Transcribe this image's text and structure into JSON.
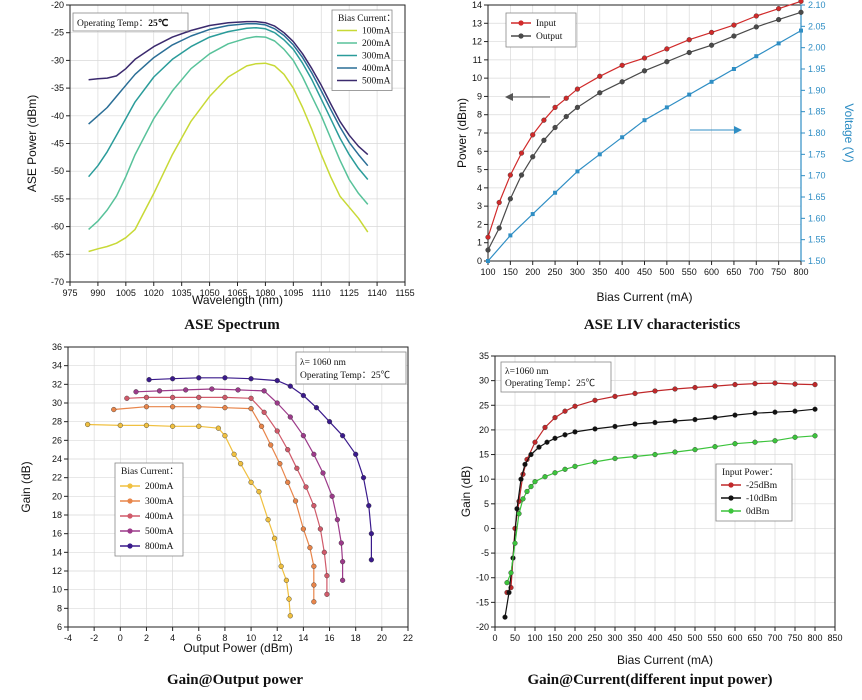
{
  "chart_data": [
    {
      "type": "line",
      "caption": "ASE Spectrum",
      "xlabel": "Wavelength (nm)",
      "ylabel": "ASE Power (dBm)",
      "xlim": [
        975,
        1155
      ],
      "ylim": [
        -70,
        -20
      ],
      "xticks": [
        975,
        990,
        1005,
        1020,
        1035,
        1050,
        1065,
        1080,
        1095,
        1110,
        1125,
        1140,
        1155
      ],
      "yticks": [
        -70,
        -65,
        -60,
        -55,
        -50,
        -45,
        -40,
        -35,
        -30,
        -25,
        -20
      ],
      "grid": true,
      "annotation": {
        "prefix": "Operating Temp：",
        "value": "25℃"
      },
      "legend": {
        "title": "Bias Current：",
        "position": "top-right"
      },
      "series": [
        {
          "name": "100mA",
          "color": "#c8d936",
          "x": [
            985,
            990,
            995,
            1000,
            1005,
            1010,
            1020,
            1030,
            1040,
            1050,
            1060,
            1070,
            1075,
            1080,
            1085,
            1090,
            1095,
            1100,
            1105,
            1110,
            1115,
            1120,
            1125,
            1130,
            1135
          ],
          "y": [
            -64.5,
            -64,
            -63.6,
            -63,
            -62,
            -60.5,
            -54,
            -47,
            -41,
            -36.5,
            -33,
            -31,
            -30.6,
            -30.5,
            -31,
            -32.5,
            -35,
            -38.5,
            -42.5,
            -47,
            -51,
            -54.5,
            -56.5,
            -58.5,
            -61
          ]
        },
        {
          "name": "200mA",
          "color": "#58c29a",
          "x": [
            985,
            990,
            995,
            1000,
            1005,
            1010,
            1020,
            1030,
            1040,
            1050,
            1060,
            1070,
            1075,
            1080,
            1085,
            1090,
            1095,
            1100,
            1105,
            1110,
            1115,
            1120,
            1125,
            1130,
            1135
          ],
          "y": [
            -60.5,
            -59,
            -57,
            -54.5,
            -51,
            -47,
            -40.5,
            -35.5,
            -31.5,
            -28.8,
            -27,
            -26,
            -25.7,
            -25.8,
            -26.5,
            -28,
            -30,
            -33,
            -36.5,
            -40,
            -44,
            -48,
            -51.5,
            -54,
            -56
          ]
        },
        {
          "name": "300mA",
          "color": "#2a9c9a",
          "x": [
            985,
            990,
            995,
            1000,
            1005,
            1010,
            1020,
            1030,
            1040,
            1050,
            1060,
            1070,
            1075,
            1080,
            1085,
            1090,
            1095,
            1100,
            1105,
            1110,
            1115,
            1120,
            1125,
            1130,
            1135
          ],
          "y": [
            -51,
            -49,
            -46.5,
            -43.5,
            -40.5,
            -37.5,
            -33,
            -29.8,
            -27.5,
            -25.8,
            -24.8,
            -24.2,
            -24.1,
            -24.3,
            -25,
            -26.3,
            -28,
            -30.5,
            -33.5,
            -37,
            -40.5,
            -44,
            -47,
            -49.5,
            -51.5
          ]
        },
        {
          "name": "400mA",
          "color": "#2a6e96",
          "x": [
            985,
            990,
            995,
            1000,
            1005,
            1010,
            1020,
            1030,
            1040,
            1050,
            1060,
            1070,
            1075,
            1080,
            1085,
            1090,
            1095,
            1100,
            1105,
            1110,
            1115,
            1120,
            1125,
            1130,
            1135
          ],
          "y": [
            -41.5,
            -40,
            -38.5,
            -36.5,
            -34.5,
            -32.5,
            -29.5,
            -27.2,
            -25.6,
            -24.4,
            -23.7,
            -23.4,
            -23.4,
            -23.6,
            -24.3,
            -25.5,
            -27.2,
            -29.5,
            -32.3,
            -35.5,
            -38.8,
            -42,
            -44.8,
            -47,
            -49
          ]
        },
        {
          "name": "500mA",
          "color": "#3b2a6e",
          "x": [
            985,
            990,
            995,
            1000,
            1005,
            1010,
            1020,
            1030,
            1040,
            1050,
            1060,
            1070,
            1075,
            1080,
            1085,
            1090,
            1095,
            1100,
            1105,
            1110,
            1115,
            1120,
            1125,
            1130,
            1135
          ],
          "y": [
            -33.5,
            -33.3,
            -33.2,
            -32.8,
            -31.5,
            -29.8,
            -27.5,
            -25.8,
            -24.6,
            -23.7,
            -23.2,
            -23,
            -23,
            -23.2,
            -23.8,
            -25,
            -26.6,
            -28.8,
            -31.5,
            -34.5,
            -37.8,
            -41,
            -43.5,
            -45.5,
            -47
          ]
        }
      ]
    },
    {
      "type": "line",
      "caption": "ASE LIV characteristics",
      "xlabel": "Bias Current (mA)",
      "ylabel": "Power (dBm)",
      "y2label": "Voltage (V)",
      "xlim": [
        100,
        800
      ],
      "ylim": [
        0,
        14
      ],
      "y2lim": [
        1.5,
        2.1
      ],
      "xticks": [
        100,
        150,
        200,
        250,
        300,
        350,
        400,
        450,
        500,
        550,
        600,
        650,
        700,
        750,
        800
      ],
      "yticks": [
        0,
        1,
        2,
        3,
        4,
        5,
        6,
        7,
        8,
        9,
        10,
        11,
        12,
        13,
        14
      ],
      "y2ticks": [
        1.5,
        1.55,
        1.6,
        1.65,
        1.7,
        1.75,
        1.8,
        1.85,
        1.9,
        1.95,
        2.0,
        2.05,
        2.1
      ],
      "y2tick_labels": [
        "1.50",
        "1.55",
        "1.60",
        "1.65",
        "1.70",
        "1.75",
        "1.80",
        "1.85",
        "1.90",
        "1.95",
        "2.00",
        "2.05",
        "2.10"
      ],
      "legend": {
        "position": "top-left"
      },
      "series": [
        {
          "name": "Input",
          "color": "#d12a2a",
          "axis": "left",
          "x": [
            100,
            125,
            150,
            175,
            200,
            225,
            250,
            275,
            300,
            350,
            400,
            450,
            500,
            550,
            600,
            650,
            700,
            750,
            800
          ],
          "y": [
            1.3,
            3.2,
            4.7,
            5.9,
            6.9,
            7.7,
            8.4,
            8.9,
            9.4,
            10.1,
            10.7,
            11.1,
            11.6,
            12.1,
            12.5,
            12.9,
            13.4,
            13.8,
            14.2
          ]
        },
        {
          "name": "Output",
          "color": "#4a4a4a",
          "axis": "left",
          "x": [
            100,
            125,
            150,
            175,
            200,
            225,
            250,
            275,
            300,
            350,
            400,
            450,
            500,
            550,
            600,
            650,
            700,
            750,
            800
          ],
          "y": [
            0.6,
            1.8,
            3.4,
            4.7,
            5.7,
            6.6,
            7.3,
            7.9,
            8.4,
            9.2,
            9.8,
            10.4,
            10.9,
            11.4,
            11.8,
            12.3,
            12.8,
            13.2,
            13.6
          ]
        },
        {
          "name": "",
          "color": "#2f8ec4",
          "axis": "right",
          "x": [
            100,
            150,
            200,
            250,
            300,
            350,
            400,
            450,
            500,
            550,
            600,
            650,
            700,
            750,
            800
          ],
          "y": [
            1.5,
            1.56,
            1.61,
            1.66,
            1.71,
            1.75,
            1.79,
            1.83,
            1.86,
            1.89,
            1.92,
            1.95,
            1.98,
            2.01,
            2.04
          ]
        }
      ]
    },
    {
      "type": "line",
      "caption": "Gain@Output power",
      "xlabel": "Output Power (dBm)",
      "ylabel": "Gain (dB)",
      "xlim": [
        -4,
        22
      ],
      "ylim": [
        6,
        36
      ],
      "xticks": [
        -4,
        -2,
        0,
        2,
        4,
        6,
        8,
        10,
        12,
        14,
        16,
        18,
        20,
        22
      ],
      "yticks": [
        6,
        8,
        10,
        12,
        14,
        16,
        18,
        20,
        22,
        24,
        26,
        28,
        30,
        32,
        34,
        36
      ],
      "annotation": {
        "lambda": "λ= 1060 nm",
        "temp": "Operating Temp：25℃"
      },
      "legend": {
        "title": "Bias Current：",
        "position": "bottom-left"
      },
      "series": [
        {
          "name": "200mA",
          "color": "#f0c040",
          "x": [
            -2.5,
            0,
            2,
            4,
            6,
            7.5,
            8,
            8.7,
            9.2,
            10,
            10.6,
            11.3,
            11.8,
            12.3,
            12.7,
            12.9,
            13
          ],
          "y": [
            27.7,
            27.6,
            27.6,
            27.5,
            27.5,
            27.3,
            26.5,
            24.5,
            23.5,
            21.5,
            20.5,
            17.5,
            15.5,
            12.5,
            11,
            9,
            7.2
          ]
        },
        {
          "name": "300mA",
          "color": "#e8854a",
          "x": [
            -0.5,
            2,
            4,
            6,
            8,
            10,
            10.8,
            11.5,
            12.2,
            12.8,
            13.4,
            14,
            14.5,
            14.8,
            14.8,
            14.8
          ],
          "y": [
            29.3,
            29.6,
            29.6,
            29.6,
            29.5,
            29.4,
            27.5,
            25.5,
            23.5,
            21.5,
            19.5,
            16.5,
            14.5,
            12.5,
            10.5,
            8.7
          ]
        },
        {
          "name": "400mA",
          "color": "#d05a6a",
          "x": [
            0.5,
            2,
            4,
            6,
            8,
            10,
            11,
            12,
            12.8,
            13.5,
            14.2,
            14.8,
            15.3,
            15.6,
            15.8,
            15.8
          ],
          "y": [
            30.5,
            30.6,
            30.6,
            30.6,
            30.6,
            30.5,
            29,
            27,
            25,
            23,
            21,
            19,
            16.5,
            14,
            11.5,
            9.5
          ]
        },
        {
          "name": "500mA",
          "color": "#9c3a8a",
          "x": [
            1.2,
            3,
            5,
            7,
            9,
            11,
            12,
            13,
            14,
            14.8,
            15.5,
            16.2,
            16.6,
            16.9,
            17,
            17
          ],
          "y": [
            31.2,
            31.3,
            31.4,
            31.5,
            31.4,
            31.3,
            30,
            28.5,
            26.5,
            24.5,
            22.5,
            20,
            17.5,
            15,
            13,
            11
          ]
        },
        {
          "name": "800mA",
          "color": "#3a1a8c",
          "x": [
            2.2,
            4,
            6,
            8,
            10,
            12,
            13,
            14,
            15,
            16,
            17,
            18,
            18.6,
            19,
            19.2,
            19.2
          ],
          "y": [
            32.5,
            32.6,
            32.7,
            32.7,
            32.6,
            32.4,
            31.8,
            30.8,
            29.5,
            28,
            26.5,
            24.5,
            22,
            19,
            16,
            13.2
          ]
        }
      ]
    },
    {
      "type": "line",
      "caption": "Gain@Current(different input power)",
      "xlabel": "Bias Current (mA)",
      "ylabel": "Gain (dB)",
      "xlim": [
        0,
        850
      ],
      "ylim": [
        -20,
        35
      ],
      "xticks": [
        0,
        50,
        100,
        150,
        200,
        250,
        300,
        350,
        400,
        450,
        500,
        550,
        600,
        650,
        700,
        750,
        800,
        850
      ],
      "yticks": [
        -20,
        -15,
        -10,
        -5,
        0,
        5,
        10,
        15,
        20,
        25,
        30,
        35
      ],
      "annotation": {
        "lambda": "λ=1060 nm",
        "temp": "Operating Temp：25℃"
      },
      "legend": {
        "title": "Input Power：",
        "position": "right"
      },
      "series": [
        {
          "name": "-25dBm",
          "color": "#c0282a",
          "x": [
            30,
            40,
            50,
            60,
            70,
            80,
            100,
            125,
            150,
            175,
            200,
            250,
            300,
            350,
            400,
            450,
            500,
            550,
            600,
            650,
            700,
            750,
            800
          ],
          "y": [
            -13,
            -12,
            0,
            5.5,
            11,
            14,
            17.5,
            20.5,
            22.5,
            23.8,
            24.8,
            26,
            26.8,
            27.4,
            27.9,
            28.3,
            28.6,
            28.9,
            29.2,
            29.4,
            29.5,
            29.3,
            29.2
          ]
        },
        {
          "name": "-10dBm",
          "color": "#111111",
          "x": [
            25,
            35,
            45,
            55,
            65,
            75,
            90,
            110,
            130,
            150,
            175,
            200,
            250,
            300,
            350,
            400,
            450,
            500,
            550,
            600,
            650,
            700,
            750,
            800
          ],
          "y": [
            -18,
            -13,
            -6,
            4,
            10,
            13,
            15,
            16.5,
            17.5,
            18.3,
            19,
            19.6,
            20.2,
            20.7,
            21.2,
            21.5,
            21.8,
            22.1,
            22.5,
            23,
            23.4,
            23.6,
            23.8,
            24.2
          ]
        },
        {
          "name": "0dBm",
          "color": "#3cc43c",
          "x": [
            30,
            40,
            50,
            60,
            70,
            80,
            90,
            100,
            125,
            150,
            175,
            200,
            250,
            300,
            350,
            400,
            450,
            500,
            550,
            600,
            650,
            700,
            750,
            800
          ],
          "y": [
            -11,
            -9,
            -3,
            3,
            6,
            7.5,
            8.5,
            9.5,
            10.5,
            11.3,
            12,
            12.6,
            13.5,
            14.2,
            14.6,
            15,
            15.5,
            16,
            16.6,
            17.2,
            17.5,
            17.8,
            18.5,
            18.8
          ]
        }
      ]
    }
  ]
}
